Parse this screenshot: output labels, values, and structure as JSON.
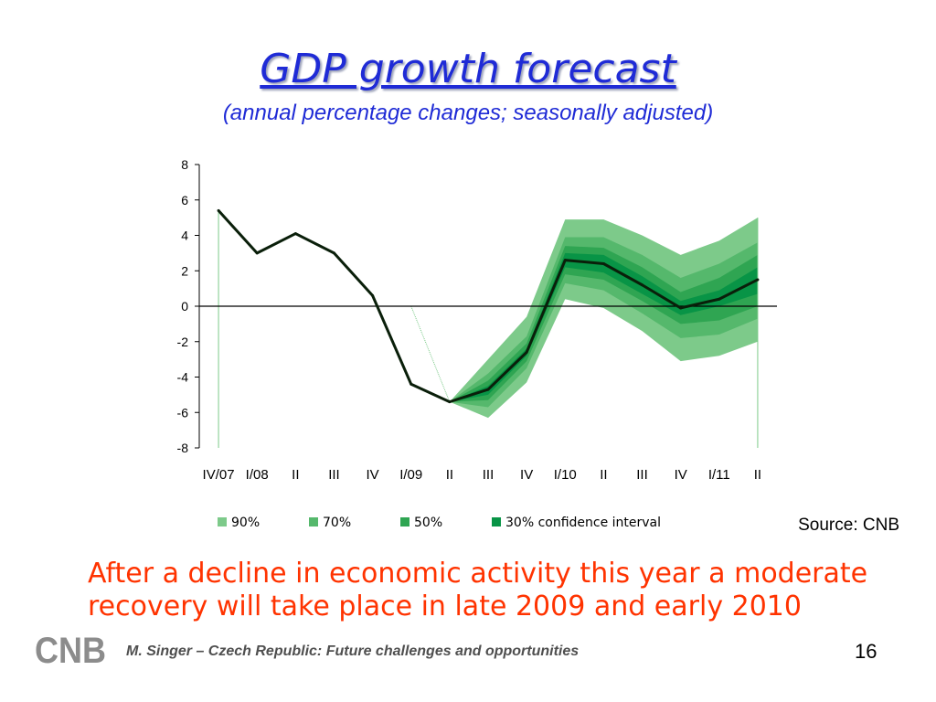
{
  "slide": {
    "title": "GDP growth forecast",
    "subtitle": "(annual percentage changes; seasonally adjusted)",
    "source": "Source: CNB",
    "note": "After a decline in economic activity this year a moderate recovery will take place in late 2009 and early 2010",
    "footer": "M. Singer – Czech Republic: Future challenges and opportunities",
    "page_number": "16",
    "logo_text": "CNB"
  },
  "chart_data": {
    "type": "line",
    "title": "GDP growth forecast",
    "subtitle": "(annual percentage changes; seasonally adjusted)",
    "categories": [
      "IV/07",
      "I/08",
      "II",
      "III",
      "IV",
      "I/09",
      "II",
      "III",
      "IV",
      "I/10",
      "II",
      "III",
      "IV",
      "I/11",
      "II"
    ],
    "ylim": [
      -8,
      8
    ],
    "yticks": [
      8,
      6,
      4,
      2,
      0,
      -2,
      -4,
      -6,
      -8
    ],
    "grid": false,
    "legend_position": "bottom",
    "series": [
      {
        "values": [
          5.4,
          3.0,
          4.1,
          3.0,
          0.6,
          -4.4,
          -5.4,
          -4.7,
          -2.6,
          2.6,
          2.4,
          1.2,
          -0.1,
          0.4,
          1.5
        ]
      }
    ],
    "confidence_intervals": {
      "start_index": 6,
      "bands": [
        {
          "name": "90%",
          "color": "#7dca8a",
          "lower": [
            -5.4,
            -6.3,
            -4.3,
            0.4,
            -0.1,
            -1.4,
            -3.1,
            -2.8,
            -2.0
          ],
          "upper": [
            -5.4,
            -3.0,
            -0.6,
            4.9,
            4.9,
            4.0,
            2.9,
            3.7,
            5.0
          ]
        },
        {
          "name": "70%",
          "color": "#55b86c",
          "lower": [
            -5.4,
            -5.7,
            -3.5,
            1.3,
            0.9,
            -0.4,
            -1.8,
            -1.6,
            -0.7
          ],
          "upper": [
            -5.4,
            -3.8,
            -1.7,
            3.9,
            3.9,
            2.9,
            1.6,
            2.4,
            3.6
          ]
        },
        {
          "name": "50%",
          "color": "#2fa552",
          "lower": [
            -5.4,
            -5.3,
            -3.1,
            1.8,
            1.5,
            0.3,
            -1.0,
            -0.8,
            0.0
          ],
          "upper": [
            -5.4,
            -4.2,
            -2.1,
            3.4,
            3.3,
            2.2,
            0.8,
            1.6,
            2.9
          ]
        },
        {
          "name": "30% confidence interval",
          "color": "#089446",
          "lower": [
            -5.4,
            -5.0,
            -2.8,
            2.2,
            1.9,
            0.7,
            -0.5,
            0.0,
            0.7
          ],
          "upper": [
            -5.4,
            -4.5,
            -2.4,
            3.0,
            2.9,
            1.7,
            0.3,
            0.9,
            2.2
          ]
        }
      ]
    }
  }
}
